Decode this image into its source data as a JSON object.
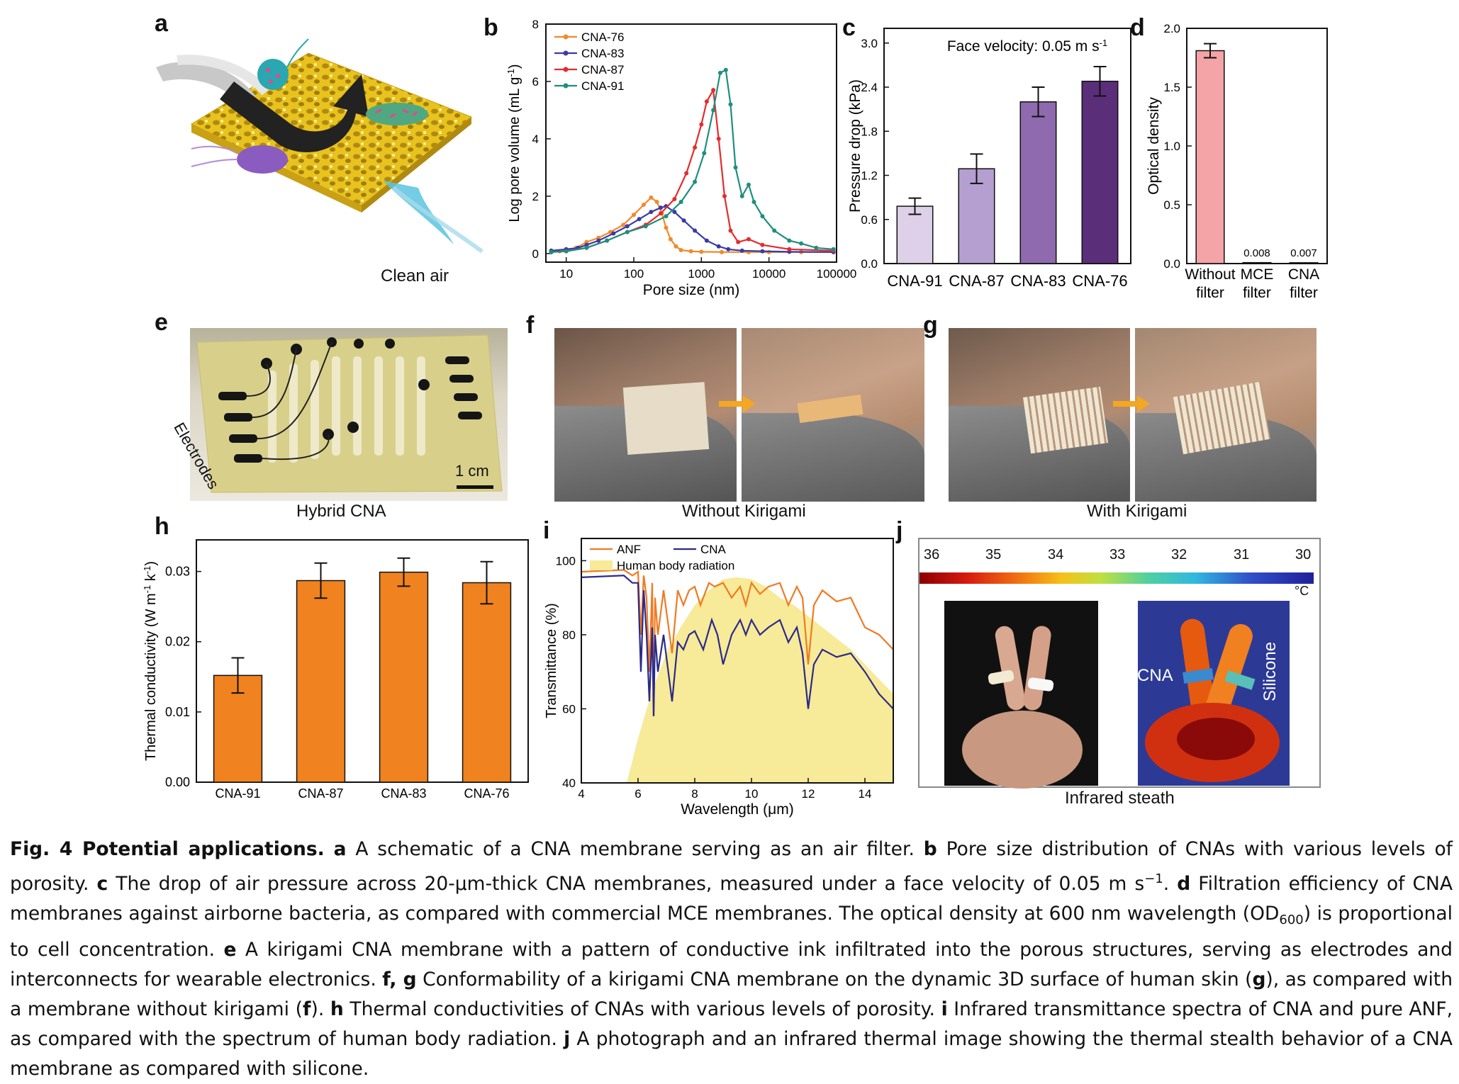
{
  "panels": {
    "a": {
      "letter": "a",
      "label": "Clean air"
    },
    "b": {
      "letter": "b"
    },
    "c": {
      "letter": "c"
    },
    "d": {
      "letter": "d"
    },
    "e": {
      "letter": "e",
      "label": "Hybrid CNA",
      "electrodes": "Electrodes",
      "scale": "1 cm"
    },
    "f": {
      "letter": "f",
      "label": "Without Kirigami"
    },
    "g": {
      "letter": "g",
      "label": "With Kirigami"
    },
    "h": {
      "letter": "h"
    },
    "i": {
      "letter": "i"
    },
    "j": {
      "letter": "j",
      "label": "Infrared steath",
      "cna": "CNA",
      "silicone": "Silicone",
      "unit": "°C",
      "colorbar_ticks": [
        "36",
        "35",
        "34",
        "33",
        "32",
        "31",
        "30"
      ]
    }
  },
  "chart_data": [
    {
      "panel": "b",
      "type": "line",
      "xlabel": "Pore size (nm)",
      "ylabel": "Log pore volume (mL g",
      "ylabel_sup": "-1",
      "ylabel_end": ")",
      "xscale": "log",
      "xlim": [
        5,
        100000
      ],
      "ylim": [
        -0.3,
        8
      ],
      "xticks": [
        "10",
        "100",
        "1000",
        "10000",
        "100000"
      ],
      "xtick_values": [
        10,
        100,
        1000,
        10000,
        100000
      ],
      "yticks": [
        "0",
        "2",
        "4",
        "6",
        "8"
      ],
      "ytick_values": [
        0,
        2,
        4,
        6,
        8
      ],
      "legend": "top-left",
      "series": [
        {
          "name": "CNA-76",
          "color": "#f08a2a",
          "x": [
            6,
            8,
            10,
            14,
            20,
            30,
            45,
            70,
            100,
            140,
            180,
            220,
            260,
            300,
            350,
            420,
            500,
            700,
            1000,
            2000,
            5000,
            10000,
            30000,
            90000
          ],
          "y": [
            0.05,
            0.08,
            0.1,
            0.2,
            0.4,
            0.55,
            0.75,
            1.0,
            1.35,
            1.7,
            1.95,
            1.8,
            1.4,
            0.9,
            0.5,
            0.25,
            0.12,
            0.08,
            0.06,
            0.05,
            0.05,
            0.05,
            0.05,
            0.05
          ]
        },
        {
          "name": "CNA-83",
          "color": "#3a3aa8",
          "x": [
            6,
            10,
            15,
            20,
            30,
            50,
            80,
            120,
            180,
            250,
            300,
            400,
            550,
            800,
            1200,
            1800,
            2500,
            4000,
            8000,
            20000,
            90000
          ],
          "y": [
            0.1,
            0.15,
            0.2,
            0.3,
            0.45,
            0.7,
            0.95,
            1.2,
            1.45,
            1.6,
            1.65,
            1.45,
            1.15,
            0.8,
            0.45,
            0.25,
            0.15,
            0.1,
            0.08,
            0.06,
            0.05
          ]
        },
        {
          "name": "CNA-87",
          "color": "#e52b2b",
          "x": [
            6,
            10,
            20,
            40,
            80,
            150,
            250,
            400,
            600,
            800,
            1000,
            1200,
            1500,
            1800,
            2200,
            2700,
            3500,
            5000,
            8000,
            20000,
            90000
          ],
          "y": [
            0.05,
            0.08,
            0.2,
            0.45,
            0.75,
            1.0,
            1.4,
            1.9,
            2.8,
            3.7,
            4.5,
            5.3,
            5.7,
            4.0,
            2.0,
            0.8,
            0.4,
            0.5,
            0.3,
            0.15,
            0.1
          ]
        },
        {
          "name": "CNA-91",
          "color": "#1e8f7e",
          "x": [
            6,
            10,
            20,
            40,
            80,
            150,
            300,
            500,
            800,
            1100,
            1500,
            1900,
            2300,
            2700,
            3200,
            4000,
            5000,
            6000,
            8000,
            12000,
            20000,
            30000,
            50000,
            90000
          ],
          "y": [
            0.05,
            0.08,
            0.2,
            0.45,
            0.75,
            0.95,
            1.3,
            1.8,
            2.5,
            3.5,
            5.0,
            6.3,
            6.4,
            5.2,
            3.0,
            2.0,
            2.4,
            1.8,
            1.3,
            0.8,
            0.45,
            0.35,
            0.2,
            0.15
          ]
        }
      ]
    },
    {
      "panel": "c",
      "type": "bar",
      "categories": [
        "CNA-91",
        "CNA-87",
        "CNA-83",
        "CNA-76"
      ],
      "values": [
        0.78,
        1.29,
        2.2,
        2.48
      ],
      "errors": [
        0.11,
        0.2,
        0.2,
        0.2
      ],
      "colors": [
        "#ddd0e8",
        "#b59ed0",
        "#8f6aae",
        "#5b2e7a"
      ],
      "ylabel": "Pressure drop (kPa)",
      "ylim": [
        0,
        3.2
      ],
      "yticks": [
        "0.0",
        "0.6",
        "1.2",
        "1.8",
        "2.4",
        "3.0"
      ],
      "ytick_values": [
        0,
        0.6,
        1.2,
        1.8,
        2.4,
        3.0
      ],
      "annotation": "Face velocity: 0.05 m s",
      "annotation_sup": "-1"
    },
    {
      "panel": "d",
      "type": "bar",
      "categories": [
        [
          "Without",
          "filter"
        ],
        [
          "MCE",
          "filter"
        ],
        [
          "CNA",
          "filter"
        ]
      ],
      "values": [
        1.81,
        0.008,
        0.007
      ],
      "errors": [
        0.06,
        0,
        0
      ],
      "value_labels": [
        "",
        "0.008",
        "0.007"
      ],
      "colors": [
        "#f4a3a7",
        "#f4a3a7",
        "#f4a3a7"
      ],
      "ylabel": "Optical density",
      "ylim": [
        0,
        2.0
      ],
      "yticks": [
        "0.0",
        "0.5",
        "1.0",
        "1.5",
        "2.0"
      ],
      "ytick_values": [
        0,
        0.5,
        1.0,
        1.5,
        2.0
      ]
    },
    {
      "panel": "h",
      "type": "bar",
      "categories": [
        "CNA-91",
        "CNA-87",
        "CNA-83",
        "CNA-76"
      ],
      "values": [
        0.0152,
        0.0287,
        0.0299,
        0.0284
      ],
      "errors": [
        0.0025,
        0.0025,
        0.002,
        0.003
      ],
      "colors": [
        "#f0821f",
        "#f0821f",
        "#f0821f",
        "#f0821f"
      ],
      "ylabel": "Thermal conductivity (W m",
      "ylabel_sup1": "-1",
      "ylabel_mid": " k",
      "ylabel_sup2": "-1",
      "ylabel_end": ")",
      "ylim": [
        0,
        0.0345
      ],
      "yticks": [
        "0.00",
        "0.01",
        "0.02",
        "0.03"
      ],
      "ytick_values": [
        0,
        0.01,
        0.02,
        0.03
      ]
    },
    {
      "panel": "i",
      "type": "line",
      "xlabel": "Wavelength (μm)",
      "ylabel": "Transmittance (%)",
      "xlim": [
        4,
        15
      ],
      "ylim": [
        40,
        106
      ],
      "xticks": [
        "4",
        "6",
        "8",
        "10",
        "12",
        "14"
      ],
      "xtick_values": [
        4,
        6,
        8,
        10,
        12,
        14
      ],
      "yticks": [
        "40",
        "60",
        "80",
        "100"
      ],
      "ytick_values": [
        40,
        60,
        80,
        100
      ],
      "legend": "top-left",
      "series": [
        {
          "name": "ANF",
          "color": "#f07a22",
          "x": [
            4,
            5.5,
            5.8,
            6.0,
            6.1,
            6.2,
            6.3,
            6.4,
            6.5,
            6.55,
            6.6,
            6.7,
            6.9,
            7.2,
            7.4,
            7.6,
            7.8,
            8.0,
            8.2,
            8.5,
            8.7,
            9.0,
            9.3,
            9.6,
            9.8,
            10.0,
            10.3,
            10.6,
            11.0,
            11.3,
            11.6,
            11.8,
            12.0,
            12.2,
            12.5,
            13.0,
            13.5,
            14.0,
            14.5,
            15.0
          ],
          "y": [
            97,
            97.5,
            96,
            97,
            80,
            96,
            90,
            70,
            94,
            58,
            90,
            80,
            92,
            75,
            92,
            88,
            92,
            93,
            88,
            94,
            93,
            94,
            90,
            93,
            88,
            94,
            91,
            93,
            94,
            88,
            93,
            90,
            72,
            88,
            92,
            89,
            90,
            82,
            80,
            76
          ]
        },
        {
          "name": "CNA",
          "color": "#2a2a8a",
          "x": [
            4,
            5.5,
            5.8,
            6.0,
            6.1,
            6.2,
            6.3,
            6.4,
            6.5,
            6.55,
            6.6,
            6.7,
            6.9,
            7.2,
            7.4,
            7.6,
            7.8,
            8.0,
            8.3,
            8.6,
            8.8,
            9.0,
            9.3,
            9.6,
            9.8,
            10.0,
            10.3,
            10.6,
            11.0,
            11.3,
            11.6,
            11.8,
            12.0,
            12.2,
            12.5,
            13.0,
            13.5,
            14.0,
            14.5,
            15.0
          ],
          "y": [
            95.5,
            96,
            94,
            94,
            70,
            92,
            80,
            62,
            82,
            58,
            80,
            70,
            80,
            62,
            78,
            76,
            80,
            81,
            76,
            84,
            80,
            72,
            80,
            84,
            80,
            84,
            80,
            82,
            84,
            78,
            82,
            75,
            60,
            72,
            76,
            74,
            75,
            70,
            64,
            60
          ]
        },
        {
          "name": "Human body radiation",
          "color": "#f7ea98",
          "fill": true,
          "x": [
            5.6,
            6.0,
            6.5,
            7.0,
            7.5,
            8.0,
            8.5,
            9.0,
            9.5,
            10.0,
            10.5,
            11.0,
            11.5,
            12.0,
            12.5,
            13.0,
            13.5,
            14.0,
            14.5,
            15.0
          ],
          "y": [
            40,
            52,
            65,
            75,
            82,
            88,
            92,
            95,
            95.5,
            95,
            93,
            90,
            88,
            85,
            82,
            79,
            76,
            72,
            68,
            64
          ]
        }
      ]
    }
  ],
  "caption": {
    "fig": "Fig. 4 Potential applications.",
    "a_l": "a",
    "a_t": " A schematic of a CNA membrane serving as an air filter. ",
    "b_l": "b",
    "b_t": " Pore size distribution of CNAs with various levels of porosity. ",
    "c_l": "c",
    "c_t": " The drop of air pressure across 20-μm-thick CNA membranes, measured under a face velocity of 0.05 m s",
    "c_sup": "−1",
    "c_end": ". ",
    "d_l": "d",
    "d_t": " Filtration efficiency of CNA membranes against airborne bacteria, as compared with commercial MCE membranes. The optical density at 600 nm wavelength (OD",
    "d_sub": "600",
    "d_end": ") is proportional to cell concentration. ",
    "e_l": "e",
    "e_t": " A kirigami CNA membrane with a pattern of conductive ink infiltrated into the porous structures, serving as electrodes and interconnects for wearable electronics. ",
    "fg_l": "f, g",
    "fg_t": " Conformability of a kirigami CNA membrane on the dynamic 3D surface of human skin (",
    "g_l": "g",
    "g_mid": "), as compared with a membrane without kirigami (",
    "f_l": "f",
    "f_end": "). ",
    "h_l": "h",
    "h_t": " Thermal conductivities of CNAs with various levels of porosity. ",
    "i_l": "i",
    "i_t": " Infrared transmittance spectra of CNA and pure ANF, as compared with the spectrum of human body radiation. ",
    "j_l": "j",
    "j_t": " A photograph and an infrared thermal image showing the thermal stealth behavior of a CNA membrane as compared with silicone."
  }
}
